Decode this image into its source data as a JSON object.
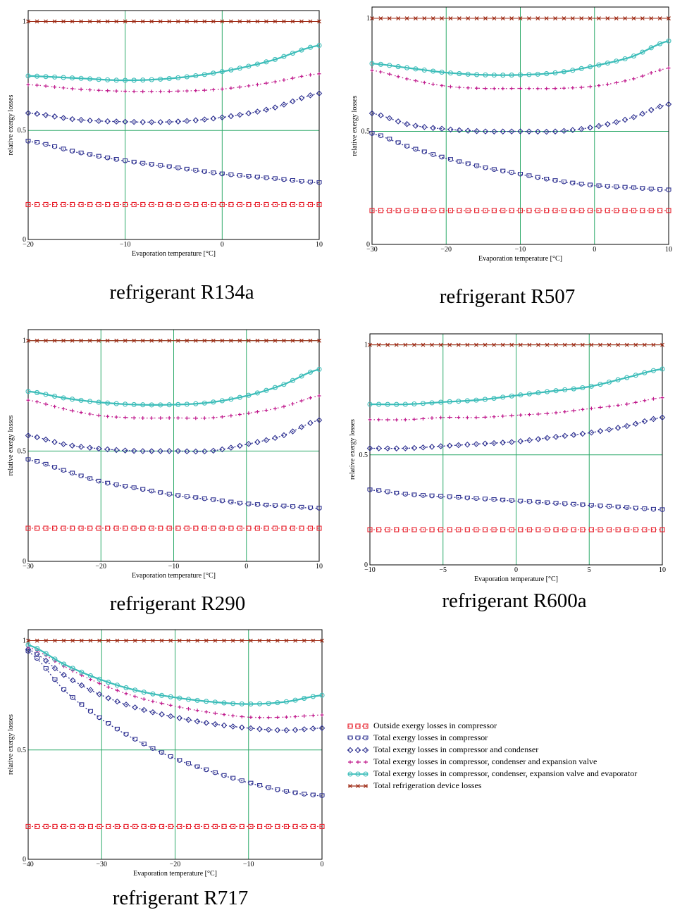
{
  "colors": {
    "outside": "#e8222e",
    "compressor": "#2e3191",
    "condenser": "#2e3191",
    "expansion": "#c0198c",
    "evaporator": "#3cbdb9",
    "total": "#9e2a14",
    "grid": "#2eaa6a"
  },
  "series_keys": [
    "outside",
    "compressor",
    "condenser",
    "expansion",
    "evaporator",
    "total"
  ],
  "legend": [
    {
      "key": "outside",
      "label": "Outside exergy losses in compressor"
    },
    {
      "key": "compressor",
      "label": "Total exergy losses in compressor"
    },
    {
      "key": "condenser",
      "label": "Total exergy losses in compressor and condenser"
    },
    {
      "key": "expansion",
      "label": "Total exergy losses in compressor, condenser and expansion valve"
    },
    {
      "key": "evaporator",
      "label": "Total exergy losses in compressor, condenser, expansion valve and evaporator"
    },
    {
      "key": "total",
      "label": "Total refrigeration device losses"
    }
  ],
  "chart_data": [
    {
      "type": "line",
      "caption": "refrigerant R134a",
      "xlabel": "Evaporation temperature [°C]",
      "ylabel": "relative exergy losses",
      "xlim": [
        -20,
        10
      ],
      "ylim": [
        0,
        1.05
      ],
      "xticks": [
        -20,
        -10,
        0,
        10
      ],
      "xtick_labels": [
        "−20",
        "−10",
        "0",
        "10"
      ],
      "yticks": [
        0,
        0.5,
        1
      ],
      "ytick_labels": [
        "0",
        "0.5",
        "1"
      ],
      "x": [
        -20,
        -15,
        -10,
        -5,
        0,
        5,
        10
      ],
      "series": [
        {
          "key": "outside",
          "values": [
            0.16,
            0.16,
            0.16,
            0.16,
            0.16,
            0.16,
            0.16
          ]
        },
        {
          "key": "compressor",
          "values": [
            0.45,
            0.4,
            0.36,
            0.33,
            0.3,
            0.28,
            0.26
          ]
        },
        {
          "key": "condenser",
          "values": [
            0.58,
            0.55,
            0.54,
            0.54,
            0.56,
            0.6,
            0.67
          ]
        },
        {
          "key": "expansion",
          "values": [
            0.71,
            0.69,
            0.68,
            0.68,
            0.69,
            0.72,
            0.76
          ]
        },
        {
          "key": "evaporator",
          "values": [
            0.75,
            0.74,
            0.73,
            0.74,
            0.77,
            0.82,
            0.89
          ]
        },
        {
          "key": "total",
          "values": [
            1.0,
            1.0,
            1.0,
            1.0,
            1.0,
            1.0,
            1.0
          ]
        }
      ]
    },
    {
      "type": "line",
      "caption": "refrigerant  R507",
      "xlabel": "Evaporation temperature [°C]",
      "ylabel": "relative exergy losses",
      "xlim": [
        -30,
        10
      ],
      "ylim": [
        0,
        1.05
      ],
      "xticks": [
        -30,
        -20,
        -10,
        0,
        10
      ],
      "xtick_labels": [
        "−30",
        "−20",
        "−10",
        "0",
        "10"
      ],
      "yticks": [
        0,
        0.5,
        1
      ],
      "ytick_labels": [
        "0",
        "0.5",
        "1"
      ],
      "x": [
        -30,
        -25,
        -20,
        -15,
        -10,
        -5,
        0,
        5,
        10
      ],
      "series": [
        {
          "key": "outside",
          "values": [
            0.15,
            0.15,
            0.15,
            0.15,
            0.15,
            0.15,
            0.15,
            0.15,
            0.15
          ]
        },
        {
          "key": "compressor",
          "values": [
            0.49,
            0.43,
            0.38,
            0.34,
            0.31,
            0.28,
            0.26,
            0.25,
            0.24
          ]
        },
        {
          "key": "condenser",
          "values": [
            0.58,
            0.53,
            0.51,
            0.5,
            0.5,
            0.5,
            0.52,
            0.56,
            0.62
          ]
        },
        {
          "key": "expansion",
          "values": [
            0.77,
            0.73,
            0.7,
            0.69,
            0.69,
            0.69,
            0.7,
            0.73,
            0.78
          ]
        },
        {
          "key": "evaporator",
          "values": [
            0.8,
            0.78,
            0.76,
            0.75,
            0.75,
            0.76,
            0.79,
            0.83,
            0.9
          ]
        },
        {
          "key": "total",
          "values": [
            1.0,
            1.0,
            1.0,
            1.0,
            1.0,
            1.0,
            1.0,
            1.0,
            1.0
          ]
        }
      ]
    },
    {
      "type": "line",
      "caption": "refrigerant R290",
      "xlabel": "Evaporation temperature [°C]",
      "ylabel": "relative exergy losses",
      "xlim": [
        -30,
        10
      ],
      "ylim": [
        0,
        1.05
      ],
      "xticks": [
        -30,
        -20,
        -10,
        0,
        10
      ],
      "xtick_labels": [
        "−30",
        "−20",
        "−10",
        "0",
        "10"
      ],
      "yticks": [
        0,
        0.5,
        1
      ],
      "ytick_labels": [
        "0",
        "0.5",
        "1"
      ],
      "x": [
        -30,
        -25,
        -20,
        -15,
        -10,
        -5,
        0,
        5,
        10
      ],
      "series": [
        {
          "key": "outside",
          "values": [
            0.15,
            0.15,
            0.15,
            0.15,
            0.15,
            0.15,
            0.15,
            0.15,
            0.15
          ]
        },
        {
          "key": "compressor",
          "values": [
            0.46,
            0.41,
            0.36,
            0.33,
            0.3,
            0.28,
            0.26,
            0.25,
            0.24
          ]
        },
        {
          "key": "condenser",
          "values": [
            0.57,
            0.53,
            0.51,
            0.5,
            0.5,
            0.5,
            0.53,
            0.57,
            0.64
          ]
        },
        {
          "key": "expansion",
          "values": [
            0.73,
            0.69,
            0.66,
            0.65,
            0.65,
            0.65,
            0.67,
            0.7,
            0.75
          ]
        },
        {
          "key": "evaporator",
          "values": [
            0.77,
            0.74,
            0.72,
            0.71,
            0.71,
            0.72,
            0.75,
            0.8,
            0.87
          ]
        },
        {
          "key": "total",
          "values": [
            1.0,
            1.0,
            1.0,
            1.0,
            1.0,
            1.0,
            1.0,
            1.0,
            1.0
          ]
        }
      ]
    },
    {
      "type": "line",
      "caption": "refrigerant R600a",
      "xlabel": "Evaporation temperature [°C]",
      "ylabel": "relative exergy losses",
      "xlim": [
        -10,
        10
      ],
      "ylim": [
        0,
        1.05
      ],
      "xticks": [
        -10,
        -5,
        0,
        5,
        10
      ],
      "xtick_labels": [
        "−10",
        "−5",
        "0",
        "5",
        "10"
      ],
      "yticks": [
        0,
        0.5,
        1
      ],
      "ytick_labels": [
        "0",
        "0.5",
        "1"
      ],
      "x": [
        -10,
        -7.5,
        -5,
        -2.5,
        0,
        2.5,
        5,
        7.5,
        10
      ],
      "series": [
        {
          "key": "outside",
          "values": [
            0.16,
            0.16,
            0.16,
            0.16,
            0.16,
            0.16,
            0.16,
            0.16,
            0.16
          ]
        },
        {
          "key": "compressor",
          "values": [
            0.34,
            0.32,
            0.31,
            0.3,
            0.29,
            0.28,
            0.27,
            0.26,
            0.25
          ]
        },
        {
          "key": "condenser",
          "values": [
            0.53,
            0.53,
            0.54,
            0.55,
            0.56,
            0.58,
            0.6,
            0.63,
            0.67
          ]
        },
        {
          "key": "expansion",
          "values": [
            0.66,
            0.66,
            0.67,
            0.67,
            0.68,
            0.69,
            0.71,
            0.73,
            0.76
          ]
        },
        {
          "key": "evaporator",
          "values": [
            0.73,
            0.73,
            0.74,
            0.75,
            0.77,
            0.79,
            0.81,
            0.85,
            0.89
          ]
        },
        {
          "key": "total",
          "values": [
            1.0,
            1.0,
            1.0,
            1.0,
            1.0,
            1.0,
            1.0,
            1.0,
            1.0
          ]
        }
      ]
    },
    {
      "type": "line",
      "caption": "refrigerant R717",
      "xlabel": "Evaporation temperature [°C]",
      "ylabel": "relative exergy losses",
      "xlim": [
        -40,
        0
      ],
      "ylim": [
        0,
        1.05
      ],
      "xticks": [
        -40,
        -30,
        -20,
        -10,
        0
      ],
      "xtick_labels": [
        "−40",
        "−30",
        "−20",
        "−10",
        "0"
      ],
      "yticks": [
        0,
        0.5,
        1
      ],
      "ytick_labels": [
        "0",
        "0.5",
        "1"
      ],
      "x": [
        -40,
        -35,
        -30,
        -25,
        -20,
        -15,
        -10,
        -5,
        0
      ],
      "series": [
        {
          "key": "outside",
          "values": [
            0.15,
            0.15,
            0.15,
            0.15,
            0.15,
            0.15,
            0.15,
            0.15,
            0.15
          ]
        },
        {
          "key": "compressor",
          "values": [
            0.95,
            0.77,
            0.64,
            0.54,
            0.46,
            0.4,
            0.35,
            0.31,
            0.29
          ]
        },
        {
          "key": "condenser",
          "values": [
            0.96,
            0.84,
            0.75,
            0.69,
            0.65,
            0.62,
            0.6,
            0.59,
            0.6
          ]
        },
        {
          "key": "expansion",
          "values": [
            0.97,
            0.88,
            0.8,
            0.74,
            0.7,
            0.67,
            0.65,
            0.65,
            0.66
          ]
        },
        {
          "key": "evaporator",
          "values": [
            0.98,
            0.89,
            0.82,
            0.77,
            0.74,
            0.72,
            0.71,
            0.72,
            0.75
          ]
        },
        {
          "key": "total",
          "values": [
            1.0,
            1.0,
            1.0,
            1.0,
            1.0,
            1.0,
            1.0,
            1.0,
            1.0
          ]
        }
      ]
    }
  ]
}
